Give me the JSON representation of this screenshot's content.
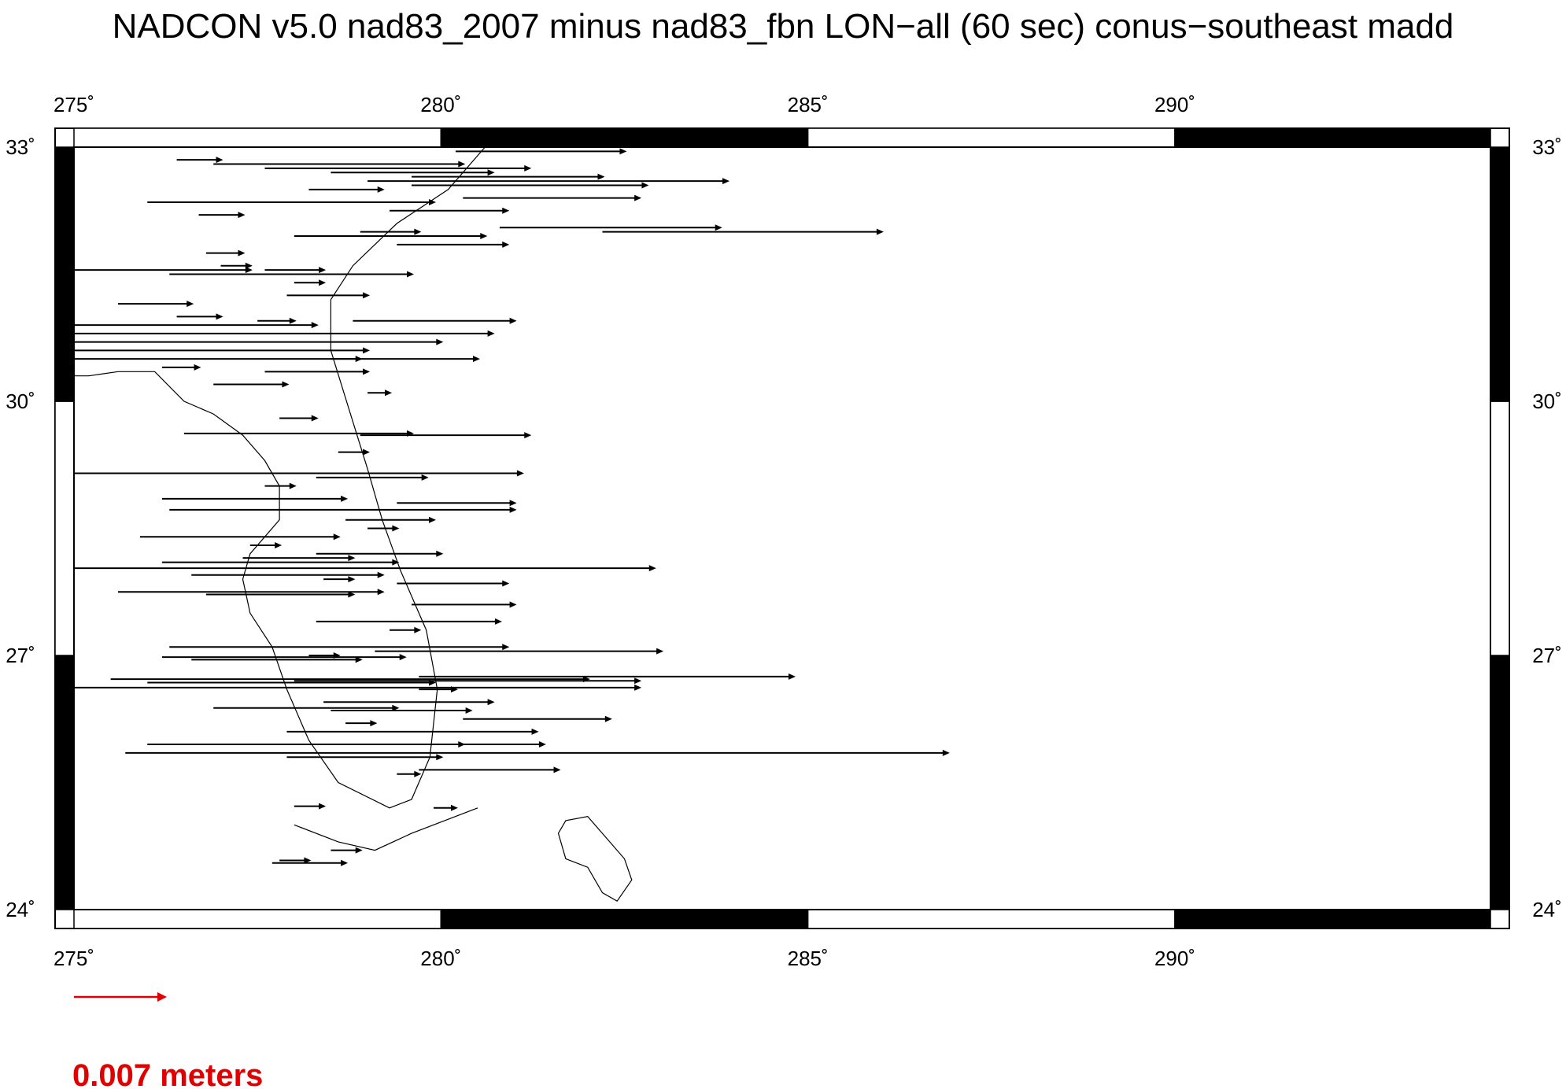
{
  "chart_data": {
    "type": "vector-field",
    "title": "NADCON v5.0 nad83_2007 minus nad83_fbn LON−all (60 sec) conus−southeast madd",
    "xlim": [
      275,
      294.3
    ],
    "ylim": [
      24,
      33
    ],
    "x_ticks": [
      275,
      280,
      285,
      290
    ],
    "x_tick_labels": [
      "275˚",
      "280˚",
      "285˚",
      "290˚"
    ],
    "y_ticks": [
      24,
      27,
      30,
      33
    ],
    "y_tick_labels": [
      "24˚",
      "27˚",
      "30˚",
      "33˚"
    ],
    "frame_segments_x": [
      275,
      280,
      285,
      290,
      294.3
    ],
    "frame_segments_y": [
      24,
      27,
      30,
      33
    ],
    "scale_arrow_label": "0.007 meters",
    "scale_arrow_color": "#e00000",
    "series": [
      {
        "name": "",
        "vectors": [
          [
            276.4,
            32.85,
            0.6
          ],
          [
            276.9,
            32.8,
            3.4
          ],
          [
            277.6,
            32.75,
            3.6
          ],
          [
            278.5,
            32.7,
            2.2
          ],
          [
            279.0,
            32.6,
            4.9
          ],
          [
            279.6,
            32.55,
            3.2
          ],
          [
            280.3,
            32.4,
            2.4
          ],
          [
            276.0,
            32.35,
            3.9
          ],
          [
            279.3,
            32.25,
            1.6
          ],
          [
            280.8,
            32.05,
            3.0
          ],
          [
            282.2,
            32.0,
            3.8
          ],
          [
            278.0,
            31.95,
            2.6
          ],
          [
            279.4,
            31.85,
            1.5
          ],
          [
            276.8,
            31.75,
            0.5
          ],
          [
            277.6,
            31.55,
            0.8
          ],
          [
            275.0,
            31.55,
            2.4
          ],
          [
            276.3,
            31.5,
            3.3
          ],
          [
            277.9,
            31.25,
            1.1
          ],
          [
            275.6,
            31.15,
            1.0
          ],
          [
            276.4,
            31.0,
            0.6
          ],
          [
            278.8,
            30.95,
            2.2
          ],
          [
            275.0,
            30.9,
            3.3
          ],
          [
            275.0,
            30.8,
            5.7
          ],
          [
            275.0,
            30.7,
            5.0
          ],
          [
            275.0,
            30.6,
            4.0
          ],
          [
            275.0,
            30.5,
            5.5
          ],
          [
            277.6,
            30.35,
            1.4
          ],
          [
            276.9,
            30.2,
            1.0
          ],
          [
            276.5,
            29.62,
            3.1
          ],
          [
            278.9,
            29.6,
            2.3
          ],
          [
            275.0,
            29.15,
            6.1
          ],
          [
            278.3,
            29.1,
            1.5
          ],
          [
            276.2,
            28.85,
            2.5
          ],
          [
            279.4,
            28.8,
            1.6
          ],
          [
            276.3,
            28.72,
            4.7
          ],
          [
            278.7,
            28.6,
            1.2
          ],
          [
            275.9,
            28.4,
            2.7
          ],
          [
            278.3,
            28.2,
            1.7
          ],
          [
            276.2,
            28.1,
            3.2
          ],
          [
            277.3,
            28.15,
            1.5
          ],
          [
            275.0,
            28.03,
            7.9
          ],
          [
            276.6,
            27.95,
            2.6
          ],
          [
            279.4,
            27.85,
            1.5
          ],
          [
            275.6,
            27.75,
            3.6
          ],
          [
            276.8,
            27.72,
            2.0
          ],
          [
            279.6,
            27.6,
            1.4
          ],
          [
            278.3,
            27.4,
            2.5
          ],
          [
            276.3,
            27.1,
            4.6
          ],
          [
            279.1,
            27.05,
            3.9
          ],
          [
            276.2,
            26.98,
            3.3
          ],
          [
            276.6,
            26.95,
            2.3
          ],
          [
            275.5,
            26.72,
            6.5
          ],
          [
            278.0,
            26.7,
            4.7
          ],
          [
            275.0,
            26.62,
            7.7
          ],
          [
            276.0,
            26.68,
            3.9
          ],
          [
            279.7,
            26.75,
            5.1
          ],
          [
            278.4,
            26.45,
            2.3
          ],
          [
            276.9,
            26.38,
            2.5
          ],
          [
            278.5,
            26.35,
            1.9
          ],
          [
            280.3,
            26.25,
            2.0
          ],
          [
            277.9,
            26.1,
            3.4
          ],
          [
            276.0,
            25.95,
            4.3
          ],
          [
            279.4,
            25.95,
            2.0
          ],
          [
            275.7,
            25.85,
            11.2
          ],
          [
            277.9,
            25.8,
            2.1
          ],
          [
            279.7,
            25.65,
            1.9
          ],
          [
            278.0,
            25.22,
            0.4
          ],
          [
            277.7,
            24.55,
            1.0
          ]
        ]
      },
      {
        "name": "",
        "vectors": [
          [
            280.2,
            32.95,
            2.3
          ],
          [
            279.6,
            32.65,
            2.6
          ],
          [
            278.2,
            32.5,
            1.0
          ],
          [
            276.7,
            32.2,
            0.6
          ],
          [
            278.9,
            32.0,
            0.8
          ],
          [
            277.0,
            31.6,
            0.4
          ],
          [
            278.0,
            31.4,
            0.4
          ],
          [
            277.5,
            30.95,
            0.5
          ],
          [
            278.5,
            30.5,
            0.4
          ],
          [
            276.2,
            30.4,
            0.5
          ],
          [
            279.0,
            30.1,
            0.3
          ],
          [
            277.8,
            29.8,
            0.5
          ],
          [
            278.6,
            29.4,
            0.4
          ],
          [
            277.6,
            29.0,
            0.4
          ],
          [
            279.0,
            28.5,
            0.4
          ],
          [
            277.4,
            28.3,
            0.4
          ],
          [
            278.4,
            27.9,
            0.4
          ],
          [
            279.3,
            27.3,
            0.4
          ],
          [
            278.2,
            27.0,
            0.4
          ],
          [
            279.7,
            26.6,
            0.5
          ],
          [
            278.7,
            26.2,
            0.4
          ],
          [
            279.4,
            25.6,
            0.3
          ],
          [
            279.9,
            25.2,
            0.3
          ],
          [
            278.5,
            24.7,
            0.4
          ],
          [
            277.8,
            24.58,
            0.4
          ]
        ]
      }
    ],
    "coastline": [
      [
        275.0,
        31.6
      ],
      [
        275.0,
        30.3
      ],
      [
        275.2,
        30.3
      ],
      [
        275.6,
        30.35
      ],
      [
        276.1,
        30.35
      ],
      [
        276.5,
        30.0
      ],
      [
        276.9,
        29.85
      ],
      [
        277.3,
        29.6
      ],
      [
        277.6,
        29.3
      ],
      [
        277.8,
        29.0
      ],
      [
        277.8,
        28.6
      ],
      [
        277.4,
        28.2
      ],
      [
        277.3,
        27.9
      ],
      [
        277.4,
        27.5
      ],
      [
        277.7,
        27.1
      ],
      [
        277.9,
        26.6
      ],
      [
        278.2,
        26.0
      ],
      [
        278.6,
        25.5
      ],
      [
        279.3,
        25.2
      ],
      [
        279.6,
        25.3
      ],
      [
        279.85,
        25.8
      ],
      [
        279.95,
        26.6
      ],
      [
        279.8,
        27.3
      ],
      [
        279.45,
        28.0
      ],
      [
        279.2,
        28.6
      ],
      [
        279.0,
        29.2
      ],
      [
        278.75,
        29.9
      ],
      [
        278.5,
        30.6
      ],
      [
        278.5,
        31.2
      ],
      [
        278.8,
        31.6
      ],
      [
        279.4,
        32.1
      ],
      [
        280.1,
        32.5
      ],
      [
        280.6,
        33.0
      ]
    ],
    "keys": [
      [
        278.0,
        25.0
      ],
      [
        278.6,
        24.8
      ],
      [
        279.1,
        24.7
      ],
      [
        279.6,
        24.9
      ],
      [
        280.2,
        25.1
      ],
      [
        280.5,
        25.2
      ]
    ],
    "island": [
      [
        282.0,
        25.1
      ],
      [
        282.3,
        24.8
      ],
      [
        282.5,
        24.6
      ],
      [
        282.6,
        24.35
      ],
      [
        282.4,
        24.1
      ],
      [
        282.2,
        24.2
      ],
      [
        282.0,
        24.5
      ],
      [
        281.7,
        24.6
      ],
      [
        281.6,
        24.9
      ],
      [
        281.7,
        25.05
      ],
      [
        282.0,
        25.1
      ]
    ]
  }
}
